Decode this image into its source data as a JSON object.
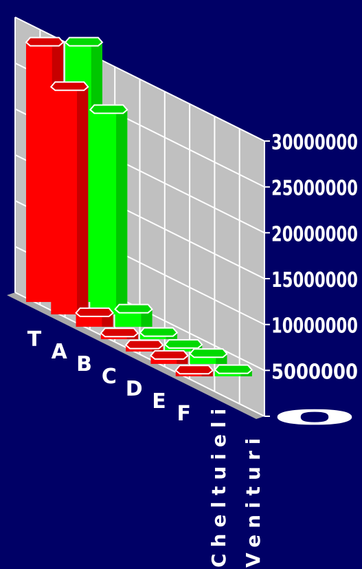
{
  "colors": {
    "background": "#000066",
    "wall": "#c0c0c0",
    "floor": "#a8a8a8",
    "grid": "#ffffff",
    "text": "#ffffff"
  },
  "chart_data": {
    "type": "bar",
    "variant": "3d-column",
    "title": "",
    "categories": [
      "T",
      "A",
      "B",
      "C",
      "D",
      "E",
      "F"
    ],
    "series": [
      {
        "name": "Cheltuieli",
        "color": "#ff0000",
        "values": [
          28000000,
          24500000,
          1200000,
          350000,
          400000,
          600000,
          350000
        ]
      },
      {
        "name": "Venituri",
        "color": "#00ff00",
        "values": [
          28000000,
          22000000,
          1600000,
          400000,
          450000,
          800000,
          400000
        ]
      }
    ],
    "y_ticks": [
      "0",
      "5000000",
      "10000000",
      "15000000",
      "20000000",
      "25000000",
      "30000000"
    ],
    "ylim": [
      0,
      30000000
    ],
    "grid": true,
    "legend": "series labels along depth axis"
  }
}
